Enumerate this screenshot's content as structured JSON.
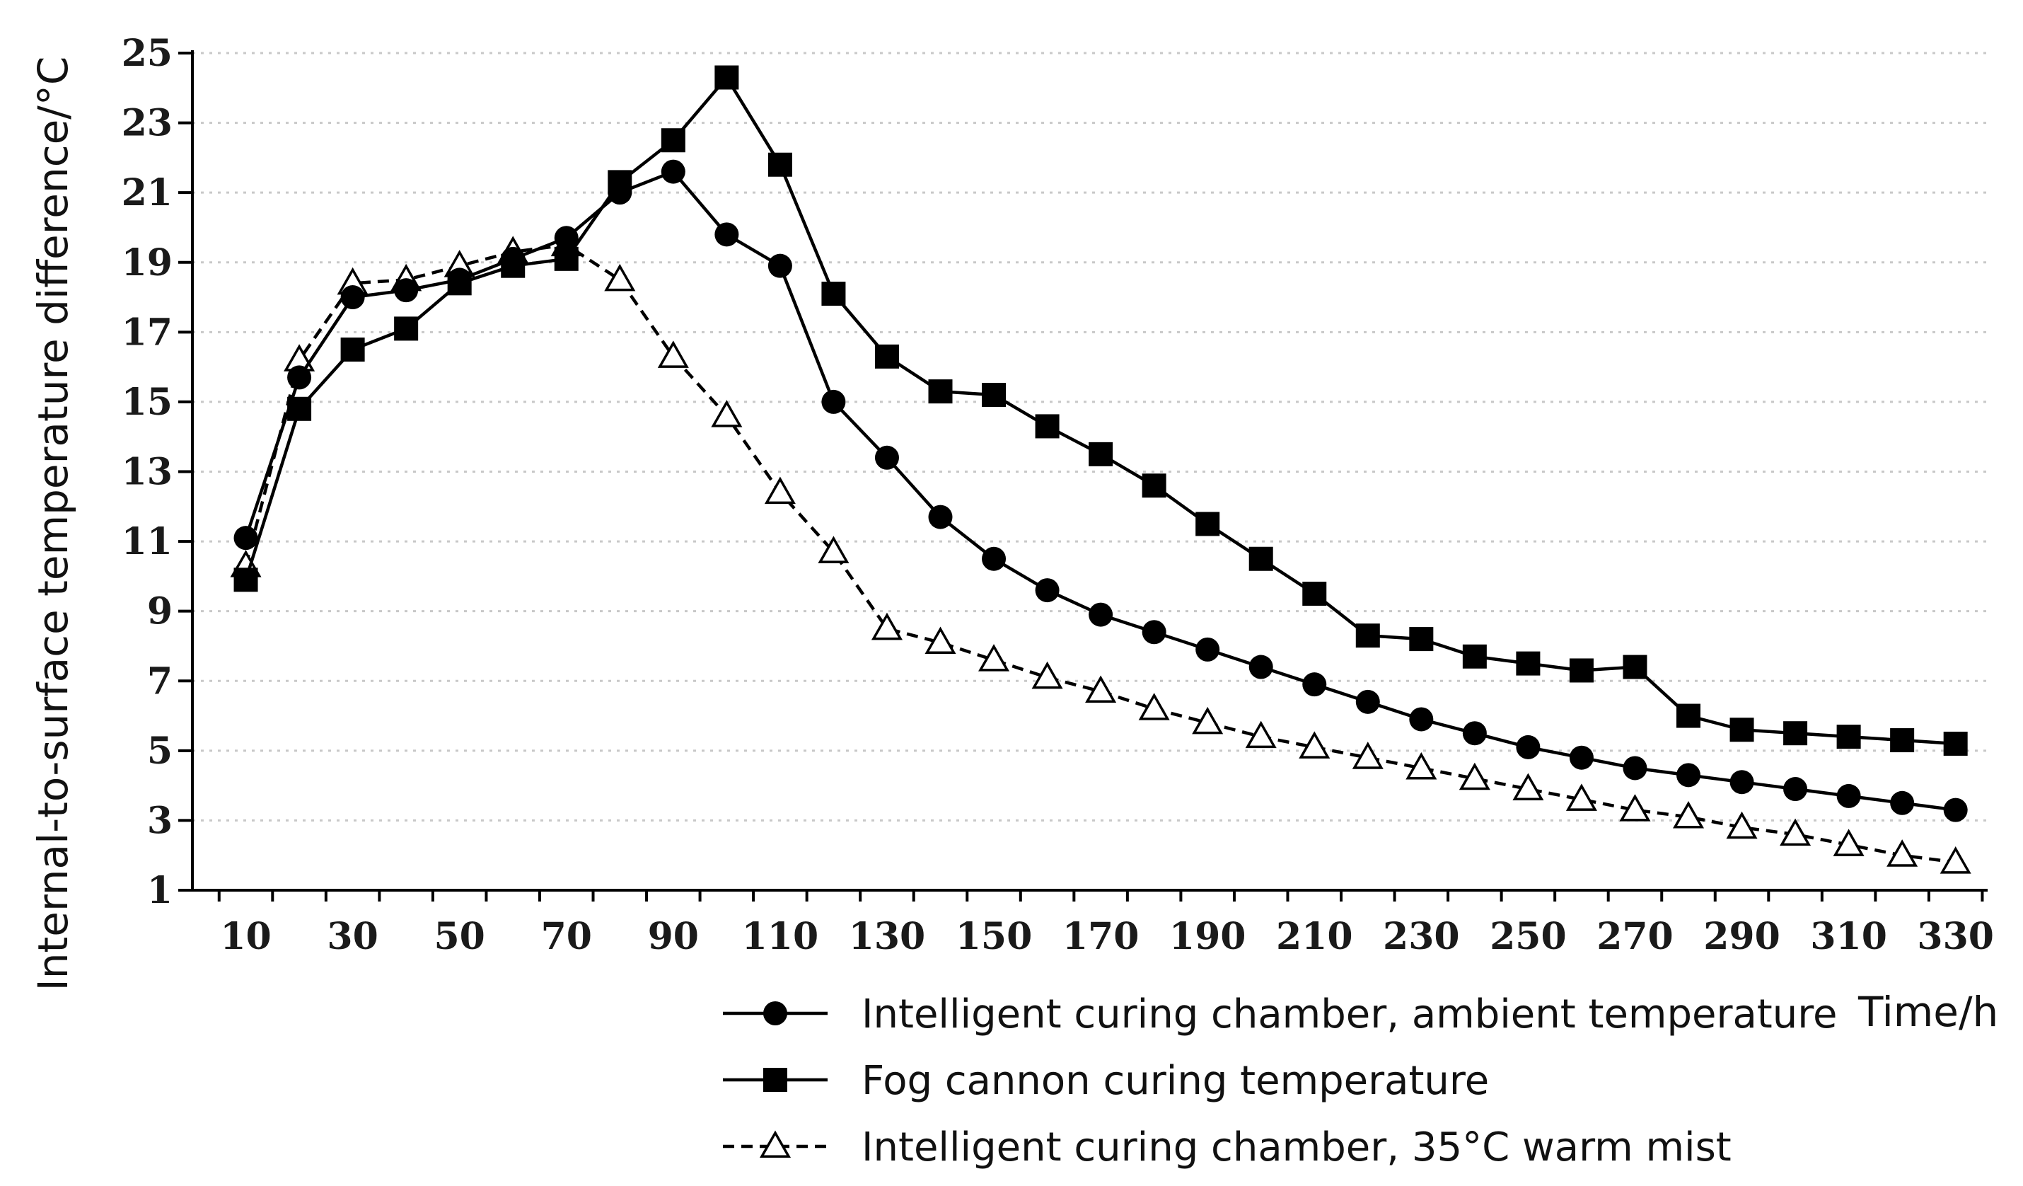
{
  "chart_data": {
    "type": "line",
    "title": "",
    "xlabel": "Time/h",
    "ylabel": "Internal-to-surface temperature difference/°C",
    "xlim": [
      0,
      336
    ],
    "ylim": [
      1,
      25
    ],
    "x_ticks": [
      10,
      30,
      50,
      70,
      90,
      110,
      130,
      150,
      170,
      190,
      210,
      230,
      250,
      270,
      290,
      310,
      330
    ],
    "y_ticks": [
      1,
      3,
      5,
      7,
      9,
      11,
      13,
      15,
      17,
      19,
      21,
      23,
      25
    ],
    "grid": "horizontal dotted",
    "legend_position": "bottom",
    "x": [
      10,
      20,
      30,
      40,
      50,
      60,
      70,
      80,
      90,
      100,
      110,
      120,
      130,
      140,
      150,
      160,
      170,
      180,
      190,
      200,
      210,
      220,
      230,
      240,
      250,
      260,
      270,
      280,
      290,
      300,
      310,
      320,
      330
    ],
    "series": [
      {
        "name": "Intelligent curing chamber, ambient temperature",
        "marker": "circle",
        "line": "solid",
        "values": [
          11.1,
          15.7,
          18.0,
          18.2,
          18.5,
          19.1,
          19.7,
          21.0,
          21.6,
          19.8,
          18.9,
          15.0,
          13.4,
          11.7,
          10.5,
          9.6,
          8.9,
          8.4,
          7.9,
          7.4,
          6.9,
          6.4,
          5.9,
          5.5,
          5.1,
          4.8,
          4.5,
          4.3,
          4.1,
          3.9,
          3.7,
          3.5,
          3.3
        ]
      },
      {
        "name": "Fog cannon curing temperature",
        "marker": "square",
        "line": "solid",
        "values": [
          9.9,
          14.8,
          16.5,
          17.1,
          18.4,
          18.9,
          19.1,
          21.3,
          22.5,
          24.3,
          21.8,
          18.1,
          16.3,
          15.3,
          15.2,
          14.3,
          13.5,
          12.6,
          11.5,
          10.5,
          9.5,
          8.3,
          8.2,
          7.7,
          7.5,
          7.3,
          7.4,
          6.0,
          5.6,
          5.5,
          5.4,
          5.3,
          5.2
        ]
      },
      {
        "name": "Intelligent curing chamber, 35°C warm mist",
        "marker": "triangle-open",
        "line": "dashed",
        "values": [
          10.3,
          16.2,
          18.4,
          18.5,
          18.9,
          19.3,
          19.5,
          18.5,
          16.3,
          14.6,
          12.4,
          10.7,
          8.5,
          8.1,
          7.6,
          7.1,
          6.7,
          6.2,
          5.8,
          5.4,
          5.1,
          4.8,
          4.5,
          4.2,
          3.9,
          3.6,
          3.3,
          3.1,
          2.8,
          2.6,
          2.3,
          2.0,
          1.8
        ]
      }
    ]
  }
}
